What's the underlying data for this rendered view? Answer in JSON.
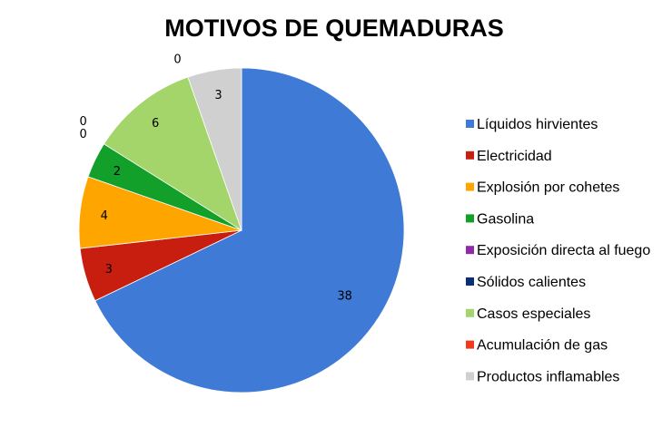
{
  "chart_data": {
    "type": "pie",
    "title": "MOTIVOS DE QUEMADURAS",
    "legend_position": "right",
    "categories": [
      "Líquidos hirvientes",
      "Electricidad",
      "Explosión por cohetes",
      "Gasolina",
      "Exposición directa al fuego",
      "Sólidos calientes",
      "Casos especiales",
      "Acumulación de gas",
      "Productos inflamables"
    ],
    "values": [
      38,
      3,
      4,
      2,
      0,
      0,
      6,
      0,
      3
    ],
    "colors": [
      "#3f7bd6",
      "#c81e0f",
      "#ffa500",
      "#12a02a",
      "#8e2ca8",
      "#0b2e7a",
      "#a3d56a",
      "#f03a1e",
      "#d0d0d0"
    ]
  }
}
